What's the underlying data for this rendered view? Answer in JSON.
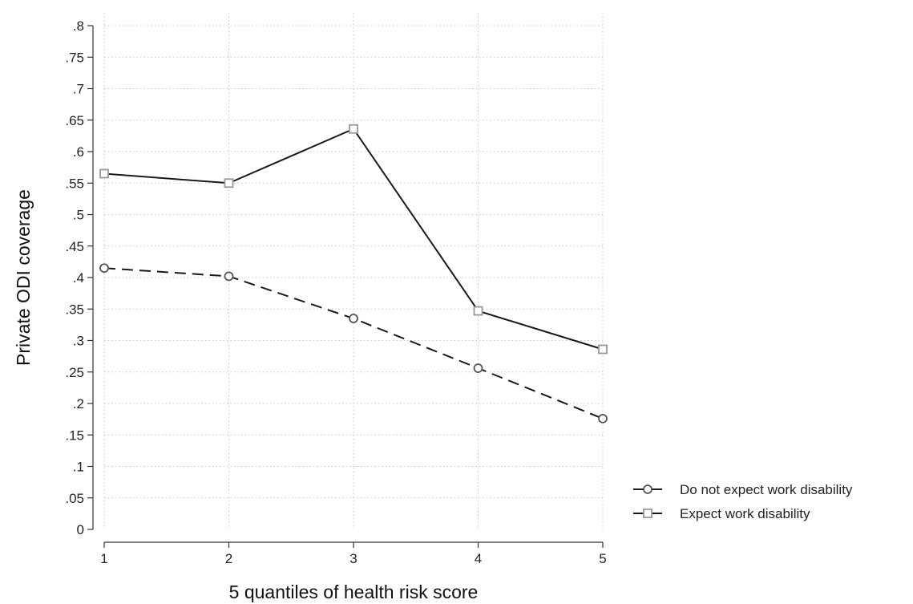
{
  "chart_data": {
    "type": "line",
    "title": "",
    "xlabel": "5 quantiles of health risk score",
    "ylabel": "Private ODI coverage",
    "x": [
      1,
      2,
      3,
      4,
      5
    ],
    "xlim": [
      1,
      5
    ],
    "ylim": [
      0,
      0.8
    ],
    "x_ticks": [
      {
        "value": 1,
        "label": "1"
      },
      {
        "value": 2,
        "label": "2"
      },
      {
        "value": 3,
        "label": "3"
      },
      {
        "value": 4,
        "label": "4"
      },
      {
        "value": 5,
        "label": "5"
      }
    ],
    "y_ticks": [
      {
        "value": 0,
        "label": "0"
      },
      {
        "value": 0.05,
        "label": ".05"
      },
      {
        "value": 0.1,
        "label": ".1"
      },
      {
        "value": 0.15,
        "label": ".15"
      },
      {
        "value": 0.2,
        "label": ".2"
      },
      {
        "value": 0.25,
        "label": ".25"
      },
      {
        "value": 0.3,
        "label": ".3"
      },
      {
        "value": 0.35,
        "label": ".35"
      },
      {
        "value": 0.4,
        "label": ".4"
      },
      {
        "value": 0.45,
        "label": ".45"
      },
      {
        "value": 0.5,
        "label": ".5"
      },
      {
        "value": 0.55,
        "label": ".55"
      },
      {
        "value": 0.6,
        "label": ".6"
      },
      {
        "value": 0.65,
        "label": ".65"
      },
      {
        "value": 0.7,
        "label": ".7"
      },
      {
        "value": 0.75,
        "label": ".75"
      },
      {
        "value": 0.8,
        "label": ".8"
      }
    ],
    "grid": true,
    "legend_position": "right",
    "series": [
      {
        "name": "Do not expect work disability",
        "values": [
          0.415,
          0.402,
          0.335,
          0.256,
          0.176
        ],
        "marker": "circle",
        "line_style": "dashed",
        "line_color": "#1a1a1a",
        "marker_color": "#555555"
      },
      {
        "name": "Expect work disability",
        "values": [
          0.565,
          0.55,
          0.636,
          0.347,
          0.286
        ],
        "marker": "square",
        "line_style": "solid",
        "line_color": "#1a1a1a",
        "marker_color": "#999999"
      }
    ],
    "legend_order": [
      0,
      1
    ],
    "legend_line_style": "solid"
  }
}
